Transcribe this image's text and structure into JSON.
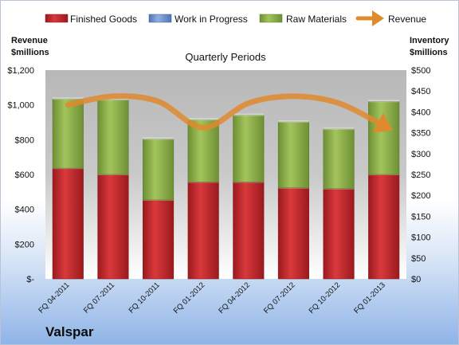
{
  "chart_data": {
    "type": "bar",
    "subtitle": "Quarterly Periods",
    "company": "Valspar",
    "left_axis_title": [
      "Revenue",
      "$millions"
    ],
    "right_axis_title": [
      "Inventory",
      "$millions"
    ],
    "categories": [
      "FQ 04-2011",
      "FQ 07-2011",
      "FQ 10-2011",
      "FQ 01-2012",
      "FQ 04-2012",
      "FQ 07-2012",
      "FQ 10-2012",
      "FQ 01-2013"
    ],
    "stacked": true,
    "series": [
      {
        "name": "Finished Goods",
        "axis": "right",
        "color": "#c0282d",
        "values": [
          265,
          250,
          189,
          232,
          232,
          218,
          216,
          250
        ]
      },
      {
        "name": "Work in Progress",
        "axis": "right",
        "color": "#6f94cf",
        "values": [
          0,
          0,
          0,
          0,
          0,
          0,
          0,
          0
        ]
      },
      {
        "name": "Raw Materials",
        "axis": "right",
        "color": "#8cae4a",
        "values": [
          166,
          179,
          146,
          149,
          160,
          158,
          143,
          175
        ]
      },
      {
        "name": "Revenue",
        "axis": "left",
        "type": "line",
        "color": "#e08a2e",
        "values": [
          1000,
          1050,
          1020,
          870,
          1010,
          1050,
          1010,
          880
        ]
      }
    ],
    "left_axis": {
      "ylim": [
        0,
        1200
      ],
      "ticks": [
        "$-",
        "$200",
        "$400",
        "$600",
        "$800",
        "$1,000",
        "$1,200"
      ]
    },
    "right_axis": {
      "ylim": [
        0,
        500
      ],
      "ticks": [
        "$0",
        "$50",
        "$100",
        "$150",
        "$200",
        "$250",
        "$300",
        "$350",
        "$400",
        "$450",
        "$500"
      ]
    },
    "legend_position": "top"
  }
}
